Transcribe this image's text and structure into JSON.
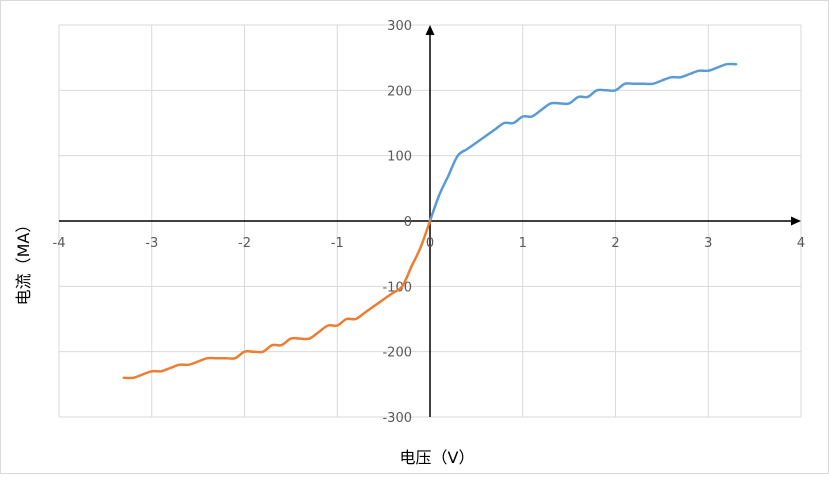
{
  "chart_data": {
    "type": "line",
    "xlabel": "电压（V）",
    "ylabel": "电流（MA）",
    "xlim": [
      -4,
      4
    ],
    "ylim": [
      -300,
      300
    ],
    "x_ticks": [
      -4,
      -3,
      -2,
      -1,
      0,
      1,
      2,
      3,
      4
    ],
    "y_ticks": [
      -300,
      -200,
      -100,
      0,
      100,
      200,
      300
    ],
    "x_tick_labels": [
      "-4",
      "-3",
      "-2",
      "-1",
      "0",
      "1",
      "2",
      "3",
      "4"
    ],
    "y_tick_labels": [
      "-300",
      "-200",
      "-100",
      "0",
      "100",
      "200",
      "300"
    ],
    "grid": true,
    "legend": "none",
    "series": [
      {
        "color": "#5b9bd5",
        "x": [
          0,
          0.1,
          0.2,
          0.3,
          0.4,
          0.5,
          0.6,
          0.7,
          0.8,
          0.9,
          1.0,
          1.1,
          1.2,
          1.3,
          1.4,
          1.5,
          1.6,
          1.7,
          1.8,
          1.9,
          2.0,
          2.1,
          2.2,
          2.3,
          2.4,
          2.5,
          2.6,
          2.7,
          2.8,
          2.9,
          3.0,
          3.1,
          3.2,
          3.3
        ],
        "y": [
          0,
          40,
          70,
          100,
          110,
          120,
          130,
          140,
          150,
          150,
          160,
          160,
          170,
          180,
          180,
          180,
          190,
          190,
          200,
          200,
          200,
          210,
          210,
          210,
          210,
          215,
          220,
          220,
          225,
          230,
          230,
          235,
          240,
          240
        ]
      },
      {
        "color": "#ed7d31",
        "x": [
          0,
          -0.1,
          -0.2,
          -0.3,
          -0.4,
          -0.5,
          -0.6,
          -0.7,
          -0.8,
          -0.9,
          -1.0,
          -1.1,
          -1.2,
          -1.3,
          -1.4,
          -1.5,
          -1.6,
          -1.7,
          -1.8,
          -1.9,
          -2.0,
          -2.1,
          -2.2,
          -2.3,
          -2.4,
          -2.5,
          -2.6,
          -2.7,
          -2.8,
          -2.9,
          -3.0,
          -3.1,
          -3.2,
          -3.3
        ],
        "y": [
          0,
          -40,
          -70,
          -100,
          -110,
          -120,
          -130,
          -140,
          -150,
          -150,
          -160,
          -160,
          -170,
          -180,
          -180,
          -180,
          -190,
          -190,
          -200,
          -200,
          -200,
          -210,
          -210,
          -210,
          -210,
          -215,
          -220,
          -220,
          -225,
          -230,
          -230,
          -235,
          -240,
          -240
        ]
      }
    ]
  }
}
